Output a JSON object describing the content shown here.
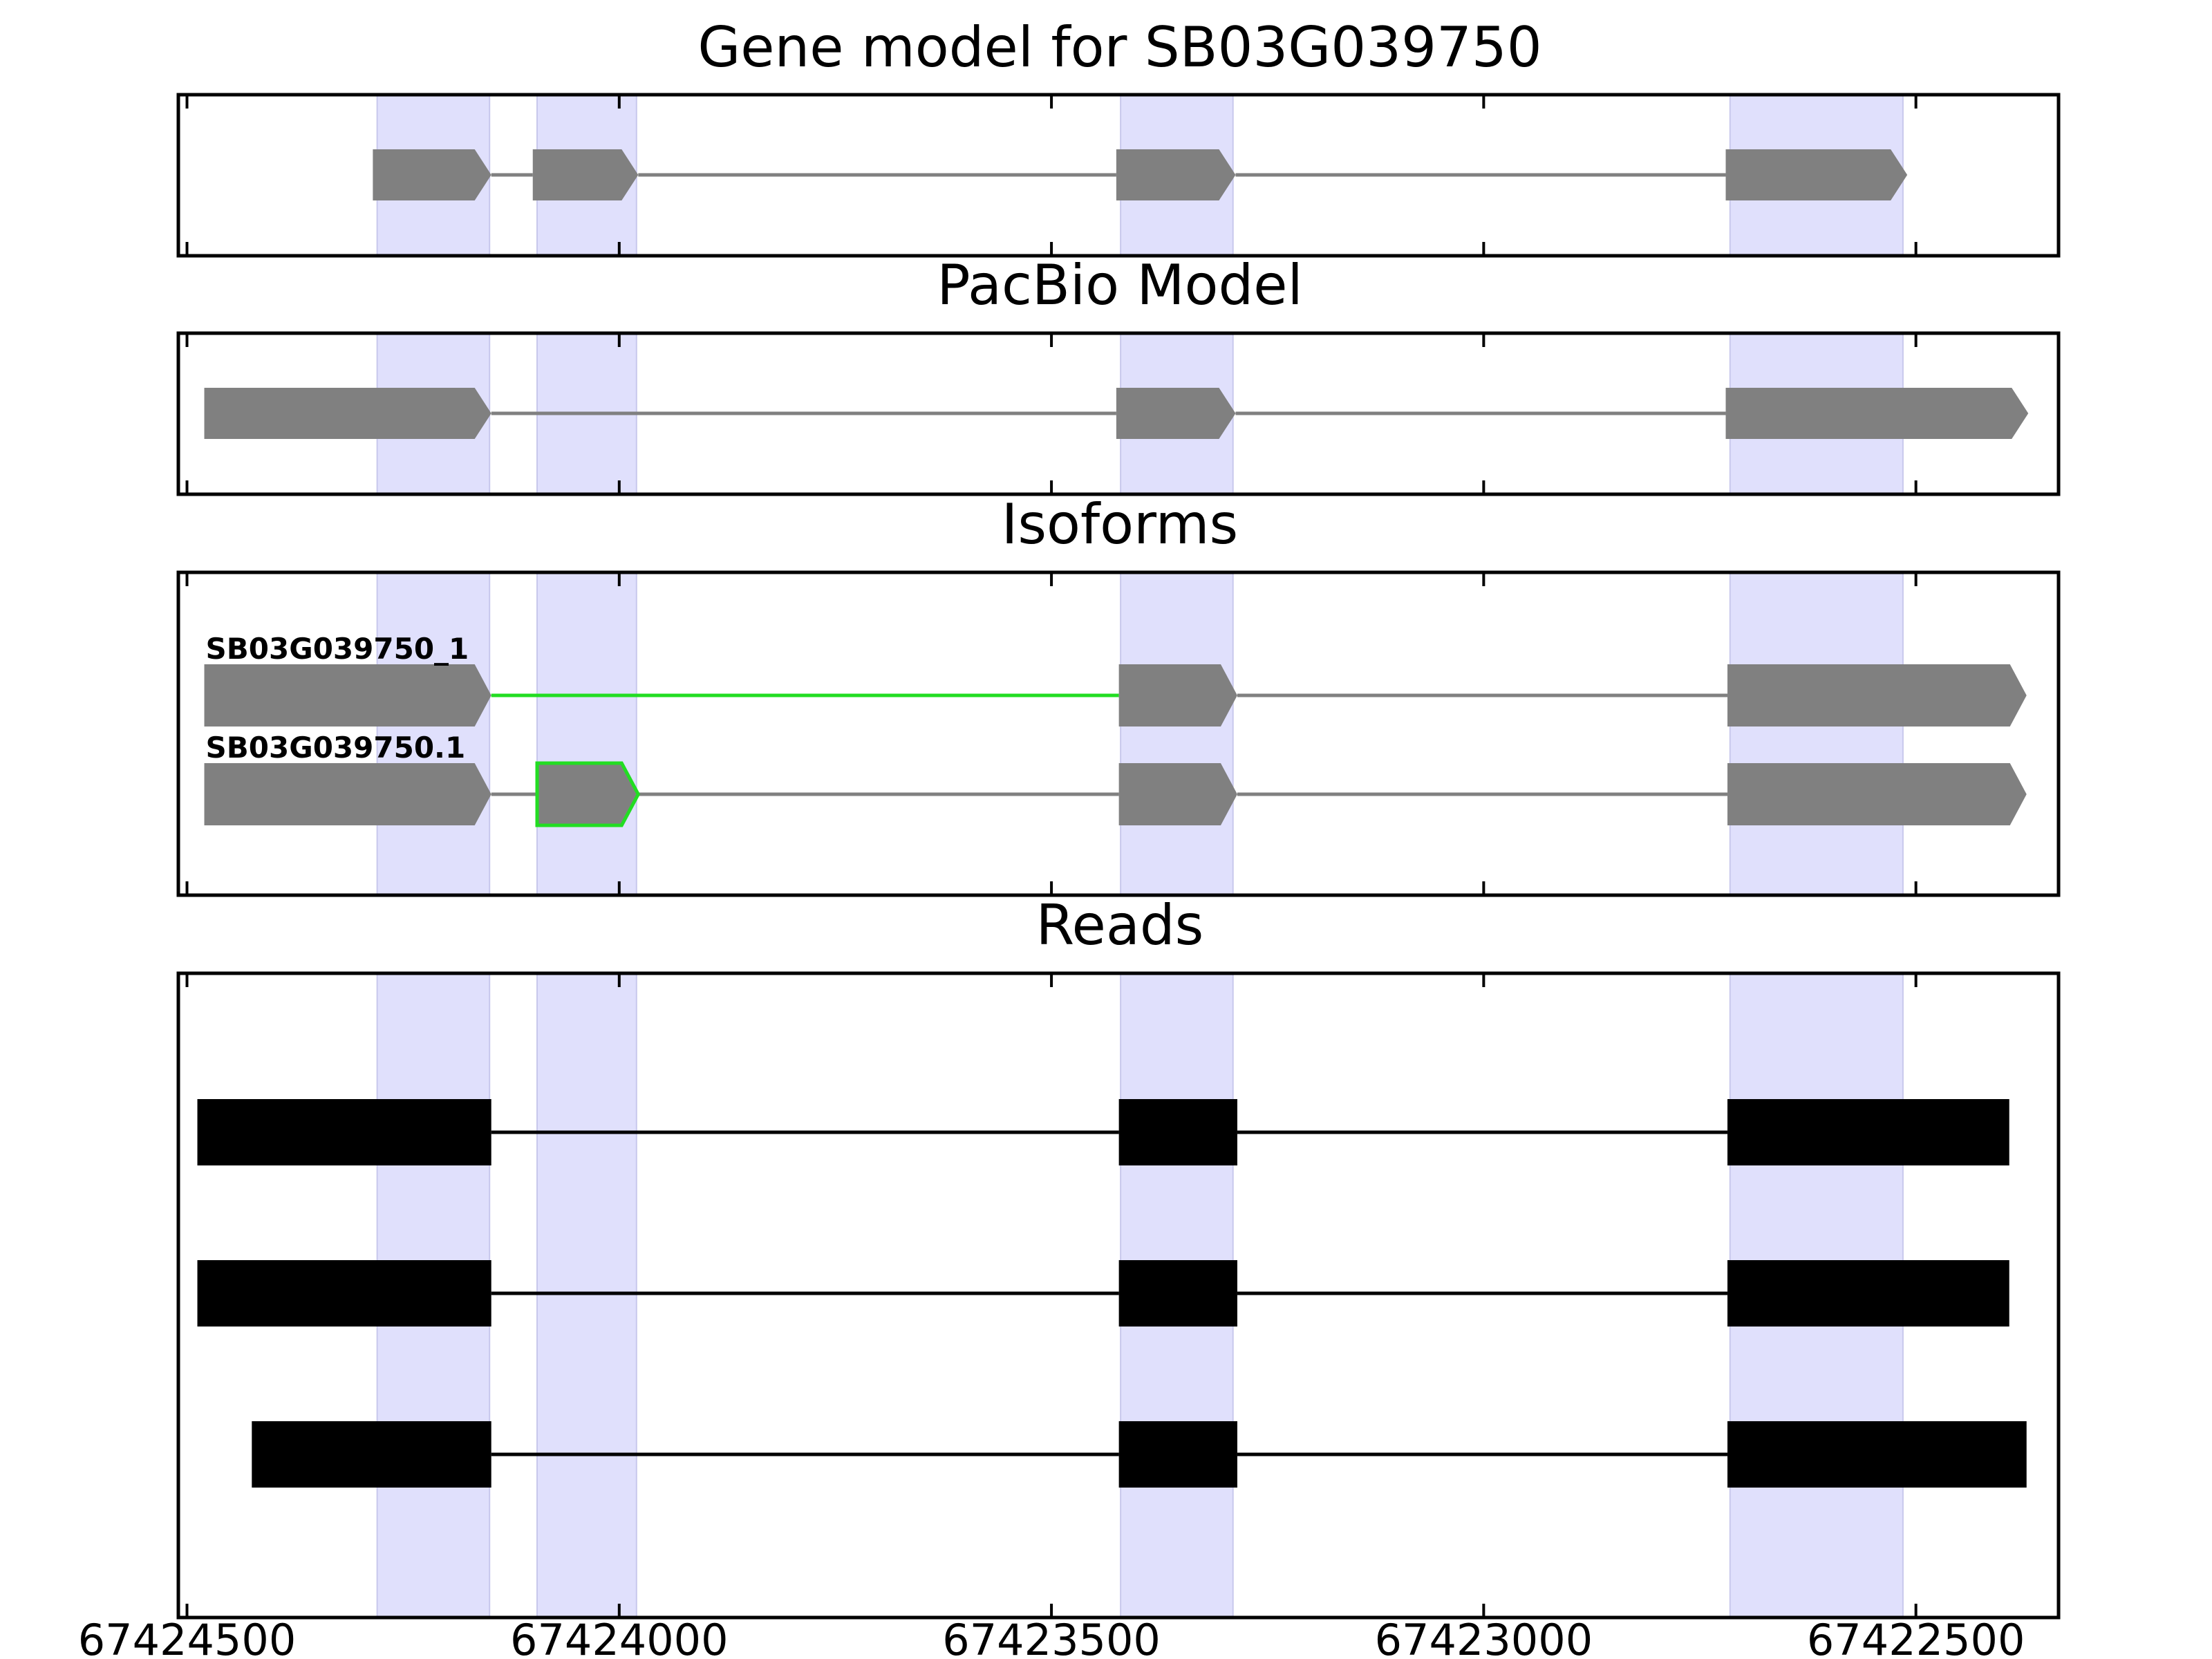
{
  "figure": {
    "panels": {
      "gene_model": {
        "title": "Gene model for SB03G039750"
      },
      "pacbio": {
        "title": "PacBio Model"
      },
      "isoforms": {
        "title": "Isoforms"
      },
      "reads": {
        "title": "Reads"
      }
    },
    "x_tick_labels": [
      "67424500",
      "67424000",
      "67423500",
      "67423000",
      "67422500"
    ]
  },
  "chart_data": {
    "type": "gene-structure",
    "x_axis": {
      "reversed": true,
      "range": [
        67424510,
        67422335
      ],
      "ticks": [
        67424500,
        67424000,
        67423500,
        67423000,
        67422500
      ]
    },
    "highlighted_exon_regions": [
      [
        67424280,
        67424150
      ],
      [
        67424095,
        67423980
      ],
      [
        67423420,
        67423290
      ],
      [
        67422715,
        67422515
      ]
    ],
    "colors": {
      "highlight": "#e0e0fc",
      "exon": "#808080",
      "intron": "#808080",
      "novel": "#22dd22",
      "read": "#000000"
    },
    "panels": [
      {
        "name": "Gene model for SB03G039750",
        "tracks": [
          {
            "exons": [
              [
                67424285,
                67424148
              ],
              [
                67424100,
                67423978
              ],
              [
                67423425,
                67423287
              ],
              [
                67422720,
                67422510
              ]
            ]
          }
        ]
      },
      {
        "name": "PacBio Model",
        "tracks": [
          {
            "exons": [
              [
                67424480,
                67424148
              ],
              [
                67423425,
                67423287
              ],
              [
                67422720,
                67422370
              ]
            ]
          }
        ]
      },
      {
        "name": "Isoforms",
        "tracks": [
          {
            "label": "SB03G039750_1",
            "exons": [
              [
                67424480,
                67424148
              ],
              [
                67423422,
                67423285
              ],
              [
                67422718,
                67422372
              ]
            ],
            "novel_introns": [
              0
            ]
          },
          {
            "label": "SB03G039750.1",
            "exons": [
              [
                67424480,
                67424148
              ],
              [
                67424095,
                67423978
              ],
              [
                67423422,
                67423285
              ],
              [
                67422718,
                67422372
              ]
            ],
            "novel_exons": [
              1
            ]
          }
        ]
      },
      {
        "name": "Reads",
        "tracks": [
          {
            "exons": [
              [
                67424488,
                67424148
              ],
              [
                67423422,
                67423285
              ],
              [
                67422718,
                67422392
              ]
            ]
          },
          {
            "exons": [
              [
                67424488,
                67424148
              ],
              [
                67423422,
                67423285
              ],
              [
                67422718,
                67422392
              ]
            ]
          },
          {
            "exons": [
              [
                67424425,
                67424148
              ],
              [
                67423422,
                67423285
              ],
              [
                67422718,
                67422372
              ]
            ]
          }
        ]
      }
    ]
  }
}
